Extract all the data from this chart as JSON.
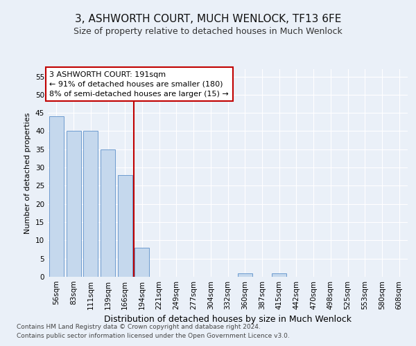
{
  "title": "3, ASHWORTH COURT, MUCH WENLOCK, TF13 6FE",
  "subtitle": "Size of property relative to detached houses in Much Wenlock",
  "xlabel": "Distribution of detached houses by size in Much Wenlock",
  "ylabel": "Number of detached properties",
  "categories": [
    "56sqm",
    "83sqm",
    "111sqm",
    "139sqm",
    "166sqm",
    "194sqm",
    "221sqm",
    "249sqm",
    "277sqm",
    "304sqm",
    "332sqm",
    "360sqm",
    "387sqm",
    "415sqm",
    "442sqm",
    "470sqm",
    "498sqm",
    "525sqm",
    "553sqm",
    "580sqm",
    "608sqm"
  ],
  "values": [
    44,
    40,
    40,
    35,
    28,
    8,
    0,
    0,
    0,
    0,
    0,
    1,
    0,
    1,
    0,
    0,
    0,
    0,
    0,
    0,
    0
  ],
  "bar_color": "#c5d8ed",
  "bar_edge_color": "#5b8fc9",
  "highlight_line_color": "#c00000",
  "highlight_line_index": 5,
  "annotation_line1": "3 ASHWORTH COURT: 191sqm",
  "annotation_line2": "← 91% of detached houses are smaller (180)",
  "annotation_line3": "8% of semi-detached houses are larger (15) →",
  "annotation_box_color": "#c00000",
  "annotation_box_fill": "#ffffff",
  "ylim": [
    0,
    57
  ],
  "yticks": [
    0,
    5,
    10,
    15,
    20,
    25,
    30,
    35,
    40,
    45,
    50,
    55
  ],
  "background_color": "#eaf0f8",
  "plot_background_color": "#eaf0f8",
  "grid_color": "#ffffff",
  "footer_line1": "Contains HM Land Registry data © Crown copyright and database right 2024.",
  "footer_line2": "Contains public sector information licensed under the Open Government Licence v3.0.",
  "title_fontsize": 11,
  "subtitle_fontsize": 9,
  "xlabel_fontsize": 9,
  "ylabel_fontsize": 8,
  "tick_fontsize": 7.5,
  "annotation_fontsize": 8,
  "footer_fontsize": 6.5
}
